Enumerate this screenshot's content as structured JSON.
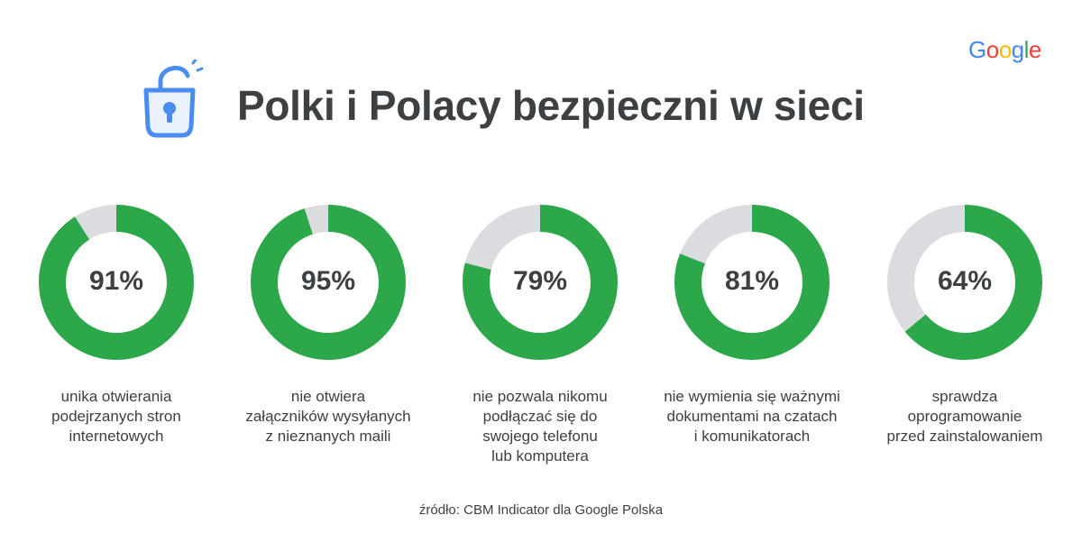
{
  "title": "Polki i Polacy bezpieczni w sieci",
  "logo": {
    "letters": [
      "G",
      "o",
      "o",
      "g",
      "l",
      "e"
    ],
    "colors": [
      "#4285f4",
      "#ea4335",
      "#fbbc05",
      "#4285f4",
      "#34a853",
      "#ea4335"
    ]
  },
  "source": "źródło: CBM Indicator dla Google Polska",
  "colors": {
    "filled": "#2ca84a",
    "remainder": "#dadcdf",
    "lock": "#4a8df0",
    "text": "#3c4043"
  },
  "chart_data": {
    "type": "pie",
    "items": [
      {
        "value": 91,
        "label": "91%",
        "caption": [
          "unika otwierania",
          "podejrzanych stron",
          "internetowych"
        ]
      },
      {
        "value": 95,
        "label": "95%",
        "caption": [
          "nie otwiera",
          "załączników wysyłanych",
          "z nieznanych maili"
        ]
      },
      {
        "value": 79,
        "label": "79%",
        "caption": [
          "nie pozwala nikomu",
          "podłączać się do",
          "swojego telefonu",
          "lub komputera"
        ]
      },
      {
        "value": 81,
        "label": "81%",
        "caption": [
          "nie wymienia się ważnymi",
          "dokumentami na czatach",
          "i komunikatorach"
        ]
      },
      {
        "value": 64,
        "label": "64%",
        "caption": [
          "sprawdza",
          "oprogramowanie",
          "przed zainstalowaniem"
        ]
      }
    ]
  }
}
